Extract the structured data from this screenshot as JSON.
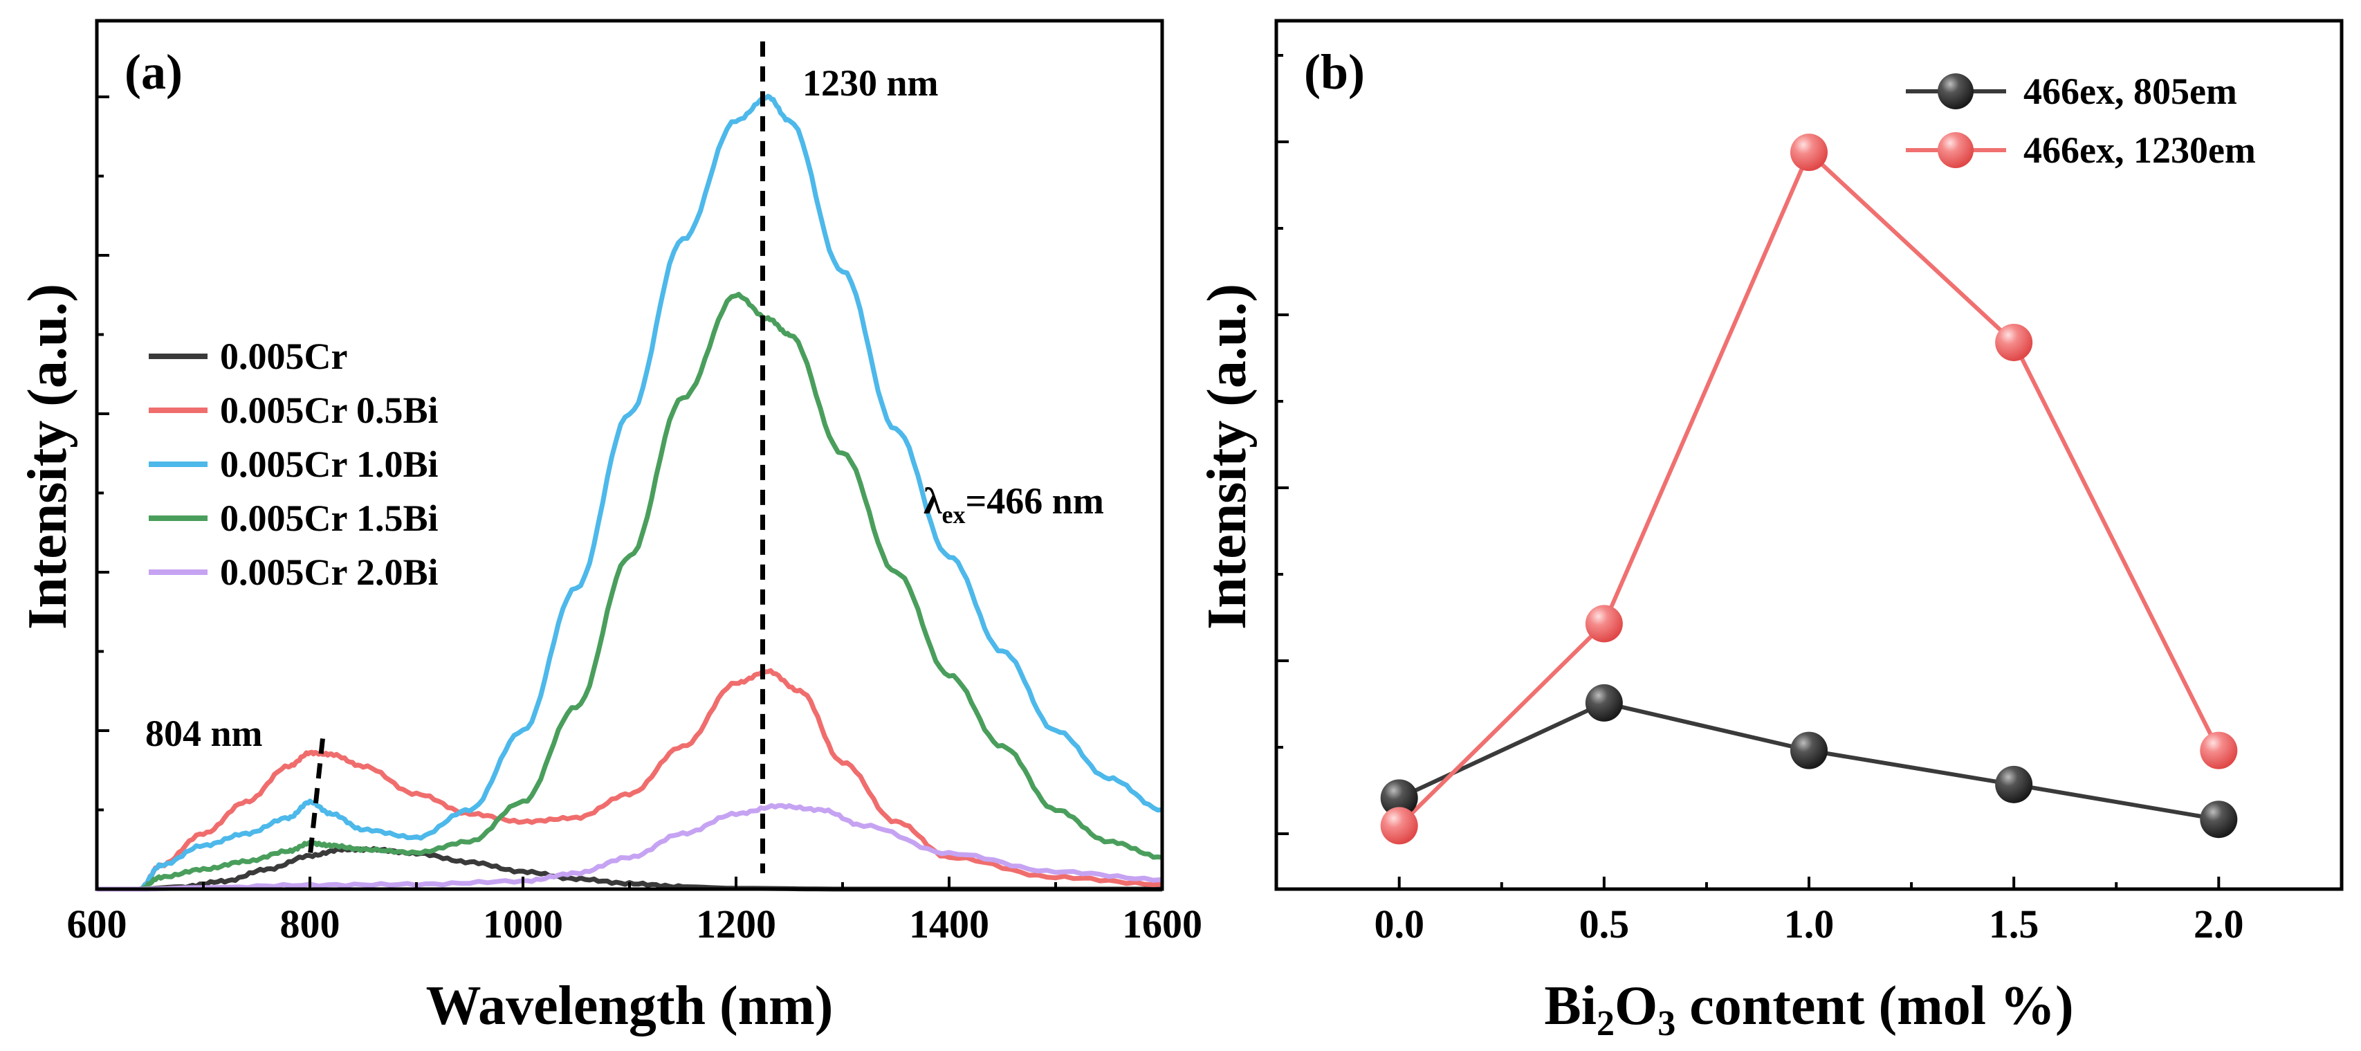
{
  "chart_data": [
    {
      "panel": "(a)",
      "type": "line",
      "xlabel": "Wavelength (nm)",
      "ylabel": "Intensity (a.u.)",
      "xlim": [
        600,
        1600
      ],
      "ylim": [
        0,
        1.0
      ],
      "x_ticks": [
        600,
        800,
        1000,
        1200,
        1400,
        1600
      ],
      "series": [
        {
          "name": "0.005Cr",
          "color": "#3a3a3a",
          "x": [
            600,
            640,
            680,
            720,
            760,
            800,
            830,
            860,
            900,
            950,
            1000,
            1050,
            1100,
            1150,
            1200,
            1300,
            1400,
            1500,
            1600
          ],
          "y": [
            0,
            0,
            0.003,
            0.01,
            0.025,
            0.042,
            0.05,
            0.05,
            0.045,
            0.034,
            0.022,
            0.013,
            0.007,
            0.003,
            0.001,
            0,
            0,
            0,
            0
          ]
        },
        {
          "name": "0.005Cr 0.5Bi",
          "color": "#f06d6d",
          "x": [
            600,
            640,
            660,
            700,
            740,
            780,
            800,
            820,
            850,
            900,
            950,
            1000,
            1050,
            1100,
            1150,
            1200,
            1230,
            1260,
            1300,
            1350,
            1400,
            1500,
            1600
          ],
          "y": [
            0,
            0,
            0.03,
            0.07,
            0.11,
            0.155,
            0.172,
            0.17,
            0.155,
            0.12,
            0.095,
            0.085,
            0.09,
            0.12,
            0.18,
            0.26,
            0.275,
            0.25,
            0.16,
            0.085,
            0.04,
            0.015,
            0.006
          ]
        },
        {
          "name": "0.005Cr 1.0Bi",
          "color": "#4db8ea",
          "x": [
            600,
            640,
            660,
            700,
            740,
            780,
            800,
            820,
            850,
            900,
            950,
            1000,
            1050,
            1100,
            1150,
            1200,
            1230,
            1250,
            1300,
            1350,
            1400,
            1450,
            1500,
            1550,
            1600
          ],
          "y": [
            0,
            0,
            0.03,
            0.055,
            0.07,
            0.09,
            0.11,
            0.095,
            0.075,
            0.065,
            0.1,
            0.2,
            0.38,
            0.6,
            0.82,
            0.97,
            1.0,
            0.97,
            0.78,
            0.58,
            0.42,
            0.3,
            0.2,
            0.14,
            0.1
          ]
        },
        {
          "name": "0.005Cr 1.5Bi",
          "color": "#4a9e5c",
          "x": [
            600,
            640,
            660,
            700,
            740,
            780,
            800,
            820,
            850,
            900,
            950,
            1000,
            1050,
            1100,
            1150,
            1200,
            1230,
            1250,
            1300,
            1350,
            1400,
            1450,
            1500,
            1550,
            1600
          ],
          "y": [
            0,
            0,
            0.015,
            0.025,
            0.035,
            0.048,
            0.058,
            0.055,
            0.05,
            0.046,
            0.06,
            0.11,
            0.23,
            0.42,
            0.62,
            0.75,
            0.72,
            0.7,
            0.55,
            0.4,
            0.27,
            0.18,
            0.1,
            0.06,
            0.04
          ]
        },
        {
          "name": "0.005Cr 2.0Bi",
          "color": "#c6a3f2",
          "x": [
            600,
            640,
            700,
            800,
            900,
            1000,
            1050,
            1100,
            1150,
            1200,
            1240,
            1280,
            1320,
            1400,
            1500,
            1600
          ],
          "y": [
            0,
            0,
            0.002,
            0.005,
            0.006,
            0.01,
            0.02,
            0.04,
            0.07,
            0.095,
            0.105,
            0.1,
            0.08,
            0.045,
            0.022,
            0.012
          ]
        }
      ],
      "annotations": {
        "peak1": "804 nm",
        "peak2": "1230 nm",
        "excitation_prefix": "λ",
        "excitation_sub": "ex",
        "excitation_value": "=466 nm"
      }
    },
    {
      "panel": "(b)",
      "type": "line",
      "xlabel_prefix": "Bi",
      "xlabel_sub1": "2",
      "xlabel_mid": "O",
      "xlabel_sub2": "3",
      "xlabel_suffix": " content (mol %)",
      "ylabel": "Intensity (a.u.)",
      "xlim": [
        -0.3,
        2.3
      ],
      "ylim": [
        0,
        1.0
      ],
      "categories": [
        "0.0",
        "0.5",
        "1.0",
        "1.5",
        "2.0"
      ],
      "x": [
        0.0,
        0.5,
        1.0,
        1.5,
        2.0
      ],
      "series": [
        {
          "name": "466ex, 805em",
          "color": "#3a3a3a",
          "values": [
            0.115,
            0.235,
            0.175,
            0.132,
            0.088
          ]
        },
        {
          "name": "466ex, 1230em",
          "color": "#f07070",
          "values": [
            0.08,
            0.335,
            0.93,
            0.69,
            0.175
          ]
        }
      ]
    }
  ]
}
